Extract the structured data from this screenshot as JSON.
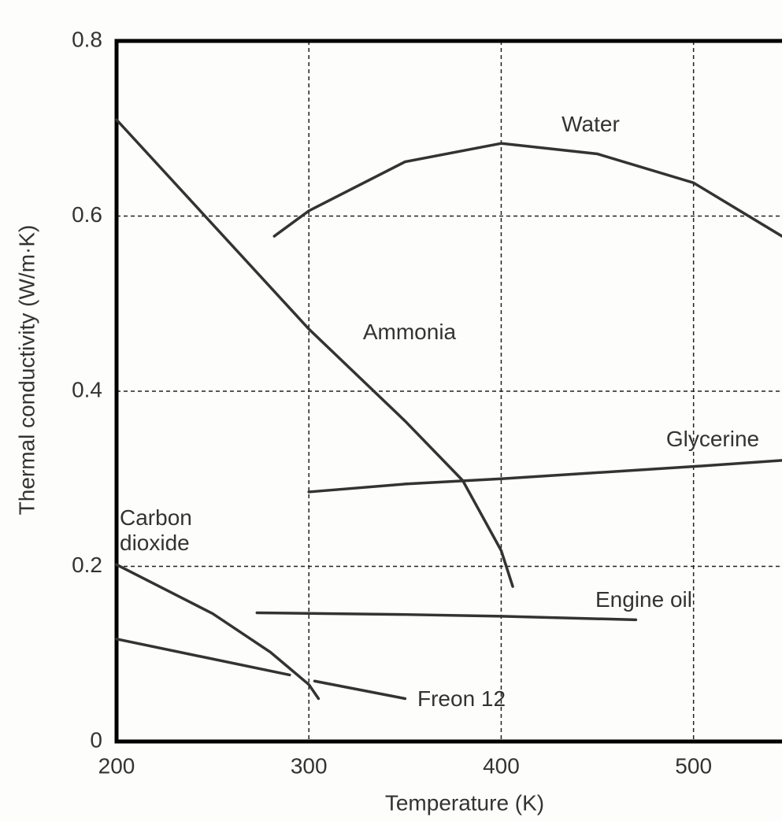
{
  "chart_data": {
    "type": "line",
    "xlabel": "Temperature (K)",
    "ylabel": "Thermal conductivity (W/m·K)",
    "xlim": [
      200,
      546
    ],
    "ylim": [
      0,
      0.8
    ],
    "xticks": [
      200,
      300,
      400,
      500
    ],
    "yticks": [
      0,
      0.2,
      0.4,
      0.6,
      0.8
    ],
    "grid": true,
    "series": [
      {
        "name": "Water",
        "color": "#333333",
        "x": [
          282,
          300,
          350,
          400,
          450,
          500,
          546
        ],
        "values": [
          0.577,
          0.606,
          0.662,
          0.683,
          0.671,
          0.638,
          0.577
        ]
      },
      {
        "name": "Ammonia",
        "color": "#333333",
        "x": [
          200,
          300,
          350,
          380,
          400,
          406
        ],
        "values": [
          0.71,
          0.471,
          0.366,
          0.298,
          0.218,
          0.177
        ]
      },
      {
        "name": "Glycerine",
        "color": "#333333",
        "x": [
          300,
          350,
          400,
          500,
          546
        ],
        "values": [
          0.285,
          0.294,
          0.3,
          0.314,
          0.321
        ]
      },
      {
        "name": "Engine oil",
        "color": "#333333",
        "x": [
          273,
          350,
          400,
          470
        ],
        "values": [
          0.147,
          0.145,
          0.143,
          0.139
        ]
      },
      {
        "name": "Carbon dioxide",
        "color": "#333333",
        "x": [
          200,
          250,
          280,
          300,
          305
        ],
        "values": [
          0.202,
          0.146,
          0.102,
          0.065,
          0.049
        ]
      },
      {
        "name": "Freon 12",
        "color": "#333333",
        "x": [
          200,
          290,
          296,
          303,
          350
        ],
        "values": [
          0.117,
          0.076,
          null,
          0.069,
          0.049
        ]
      }
    ]
  }
}
